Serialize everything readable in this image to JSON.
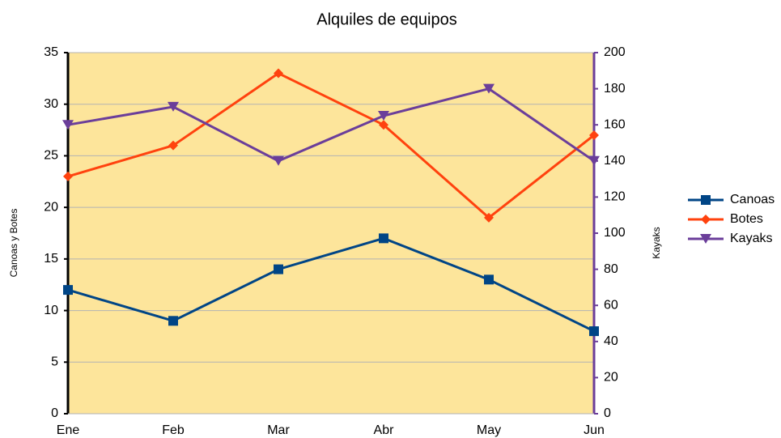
{
  "chart_data": {
    "type": "line",
    "title": "Alquiles de equipos",
    "ylabel": "Canoas y Botes",
    "y2label": "Kayaks",
    "categories": [
      "Ene",
      "Feb",
      "Mar",
      "Abr",
      "May",
      "Jun"
    ],
    "series": [
      {
        "name": "Canoas",
        "color": "#004586",
        "marker": "square",
        "values": [
          12,
          9,
          14,
          17,
          13,
          8
        ]
      },
      {
        "name": "Botes",
        "color": "#ff420e",
        "marker": "diamond",
        "values": [
          23,
          26,
          33,
          28,
          19,
          27
        ]
      },
      {
        "name": "Kayaks",
        "color": "#6b3e9a",
        "marker": "triangle-down",
        "axis": "y2",
        "values": [
          160,
          170,
          140,
          165,
          180,
          140
        ]
      }
    ],
    "ylim": [
      0,
      35
    ],
    "yticks": [
      0,
      5,
      10,
      15,
      20,
      25,
      30,
      35
    ],
    "y2lim": [
      0,
      200
    ],
    "y2ticks": [
      0,
      20,
      40,
      60,
      80,
      100,
      120,
      140,
      160,
      180,
      200
    ],
    "y2color": "#6b3e9a",
    "background": "#fde59b",
    "grid": true,
    "legend": "right"
  }
}
